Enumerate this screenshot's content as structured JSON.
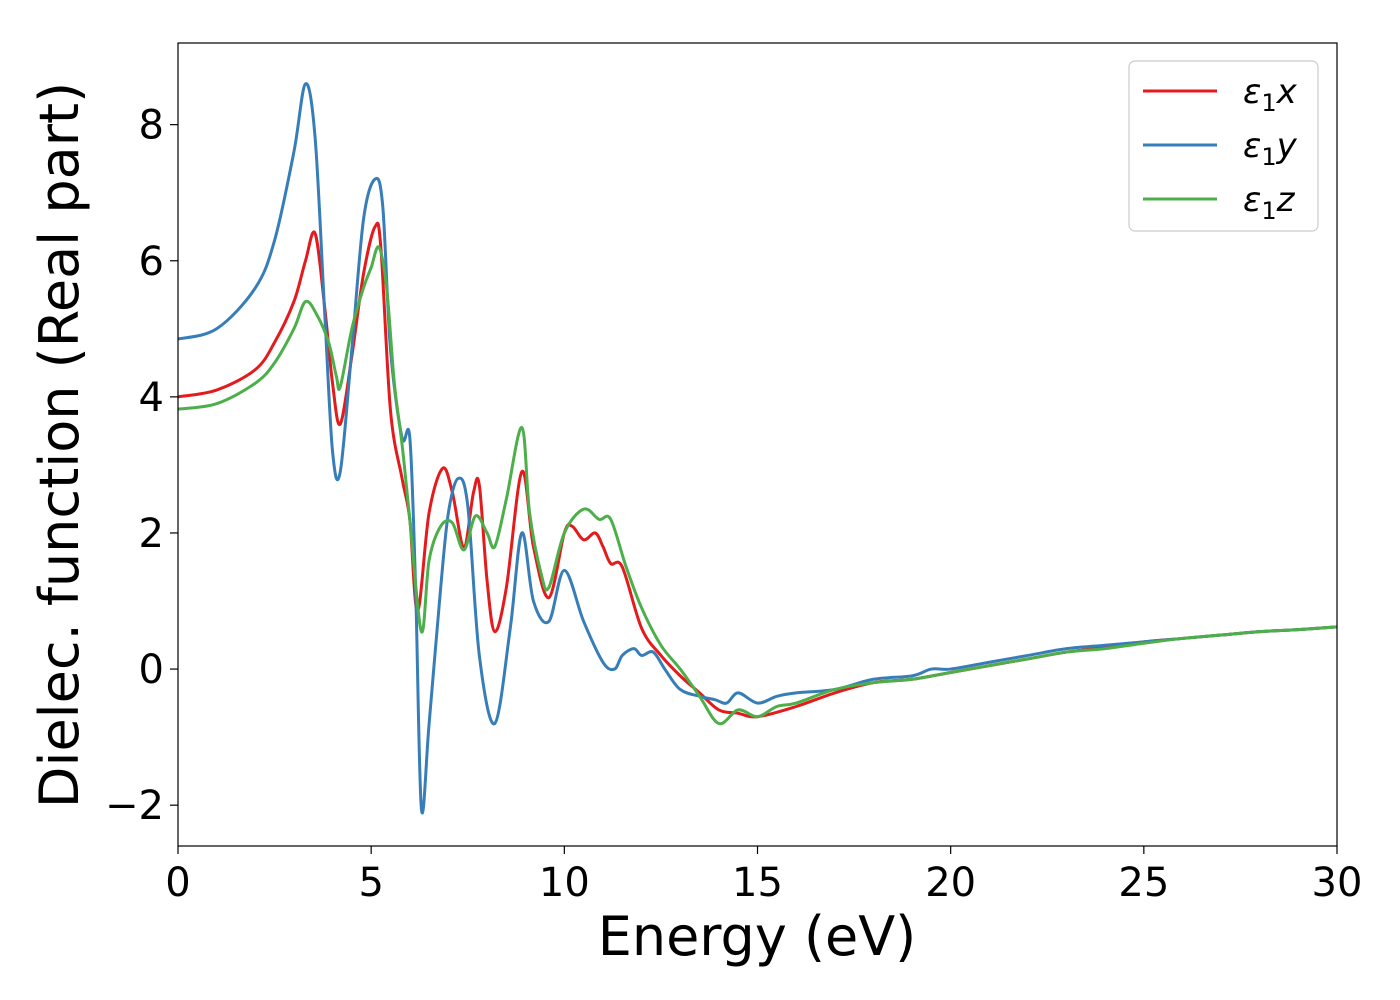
{
  "chart_data": {
    "type": "line",
    "title": "",
    "xlabel": "Energy (eV)",
    "ylabel": "Dielec. function (Real part)",
    "xlim": [
      0,
      30
    ],
    "ylim": [
      -2.6,
      9.2
    ],
    "xticks": [
      0,
      5,
      10,
      15,
      20,
      25,
      30
    ],
    "xtick_labels": [
      "0",
      "5",
      "10",
      "15",
      "20",
      "25",
      "30"
    ],
    "yticks": [
      -2,
      0,
      2,
      4,
      6,
      8
    ],
    "ytick_labels": [
      "−2",
      "0",
      "2",
      "4",
      "6",
      "8"
    ],
    "grid": false,
    "legend_position": "top-right",
    "series": [
      {
        "name_base": "ε",
        "name_sub": "1",
        "name_suffix": "x",
        "color": "#e41a1c",
        "x": [
          0,
          1,
          2,
          2.5,
          3,
          3.3,
          3.55,
          3.8,
          4.0,
          4.2,
          4.5,
          4.8,
          5.1,
          5.25,
          5.5,
          5.8,
          6.0,
          6.2,
          6.5,
          6.85,
          7.1,
          7.4,
          7.65,
          7.8,
          8.0,
          8.2,
          8.5,
          8.9,
          9.2,
          9.6,
          10.0,
          10.2,
          10.5,
          10.8,
          11.0,
          11.2,
          11.5,
          12.0,
          12.5,
          13.0,
          13.5,
          14.0,
          14.5,
          15.0,
          16.0,
          17.0,
          18.0,
          19.0,
          20.0,
          21.0,
          22.0,
          23.0,
          24.0,
          25.0,
          26.0,
          27.0,
          28.0,
          29.0,
          30.0
        ],
        "y": [
          4.0,
          4.1,
          4.4,
          4.8,
          5.4,
          6.0,
          6.4,
          5.3,
          4.2,
          3.6,
          4.6,
          5.8,
          6.5,
          6.2,
          3.8,
          2.8,
          2.2,
          0.85,
          2.3,
          2.95,
          2.6,
          1.8,
          2.6,
          2.7,
          1.3,
          0.55,
          1.2,
          2.9,
          1.8,
          1.05,
          2.0,
          2.1,
          1.9,
          2.0,
          1.8,
          1.55,
          1.5,
          0.6,
          0.2,
          -0.1,
          -0.35,
          -0.6,
          -0.65,
          -0.7,
          -0.55,
          -0.35,
          -0.2,
          -0.15,
          -0.05,
          0.05,
          0.15,
          0.25,
          0.32,
          0.4,
          0.45,
          0.5,
          0.55,
          0.58,
          0.62
        ]
      },
      {
        "name_base": "ε",
        "name_sub": "1",
        "name_suffix": "y",
        "color": "#377eb8",
        "x": [
          0,
          1,
          2,
          2.5,
          3,
          3.3,
          3.55,
          3.8,
          4.0,
          4.2,
          4.5,
          4.8,
          5.1,
          5.3,
          5.5,
          5.8,
          6.0,
          6.15,
          6.3,
          6.5,
          6.8,
          7.0,
          7.25,
          7.5,
          7.8,
          8.2,
          8.6,
          8.9,
          9.2,
          9.6,
          10.0,
          10.5,
          11.0,
          11.3,
          11.5,
          11.8,
          12.0,
          12.3,
          12.6,
          13.0,
          13.5,
          13.9,
          14.2,
          14.5,
          15.0,
          15.5,
          16.0,
          17.0,
          18.0,
          19.0,
          19.5,
          20.0,
          21.0,
          22.0,
          23.0,
          24.0,
          25.0,
          26.0,
          27.0,
          28.0,
          29.0,
          30.0
        ],
        "y": [
          4.85,
          5.0,
          5.6,
          6.3,
          7.6,
          8.6,
          7.8,
          5.2,
          3.2,
          2.9,
          4.7,
          6.6,
          7.2,
          6.8,
          4.7,
          3.4,
          3.4,
          1.2,
          -2.05,
          -0.8,
          1.2,
          2.3,
          2.8,
          2.4,
          0.2,
          -0.8,
          0.6,
          2.0,
          1.0,
          0.7,
          1.45,
          0.7,
          0.1,
          0.0,
          0.2,
          0.3,
          0.2,
          0.25,
          0.0,
          -0.3,
          -0.4,
          -0.45,
          -0.5,
          -0.35,
          -0.5,
          -0.4,
          -0.35,
          -0.3,
          -0.15,
          -0.1,
          0.0,
          0.0,
          0.1,
          0.2,
          0.3,
          0.35,
          0.4,
          0.45,
          0.5,
          0.55,
          0.58,
          0.62
        ]
      },
      {
        "name_base": "ε",
        "name_sub": "1",
        "name_suffix": "z",
        "color": "#4daf4a",
        "x": [
          0,
          1,
          2,
          2.5,
          3,
          3.3,
          3.6,
          3.9,
          4.1,
          4.2,
          4.5,
          4.8,
          5.0,
          5.2,
          5.4,
          5.6,
          5.8,
          6.0,
          6.3,
          6.5,
          6.8,
          7.1,
          7.4,
          7.7,
          8.0,
          8.2,
          8.5,
          8.9,
          9.1,
          9.4,
          9.6,
          10.0,
          10.5,
          10.9,
          11.2,
          11.6,
          12.0,
          12.5,
          13.0,
          13.5,
          14.0,
          14.5,
          15.0,
          15.5,
          16.0,
          17.0,
          18.0,
          19.0,
          20.0,
          21.0,
          22.0,
          23.0,
          24.0,
          25.0,
          26.0,
          27.0,
          28.0,
          29.0,
          30.0
        ],
        "y": [
          3.82,
          3.9,
          4.2,
          4.5,
          5.0,
          5.4,
          5.2,
          4.8,
          4.3,
          4.15,
          5.0,
          5.6,
          5.9,
          6.2,
          5.6,
          4.2,
          3.3,
          2.2,
          0.55,
          1.6,
          2.1,
          2.15,
          1.75,
          2.25,
          2.0,
          1.8,
          2.5,
          3.55,
          2.3,
          1.4,
          1.2,
          2.0,
          2.35,
          2.2,
          2.2,
          1.5,
          0.9,
          0.35,
          0.0,
          -0.4,
          -0.8,
          -0.6,
          -0.7,
          -0.55,
          -0.5,
          -0.3,
          -0.2,
          -0.15,
          -0.05,
          0.05,
          0.15,
          0.25,
          0.3,
          0.38,
          0.45,
          0.5,
          0.55,
          0.58,
          0.62
        ]
      }
    ]
  }
}
